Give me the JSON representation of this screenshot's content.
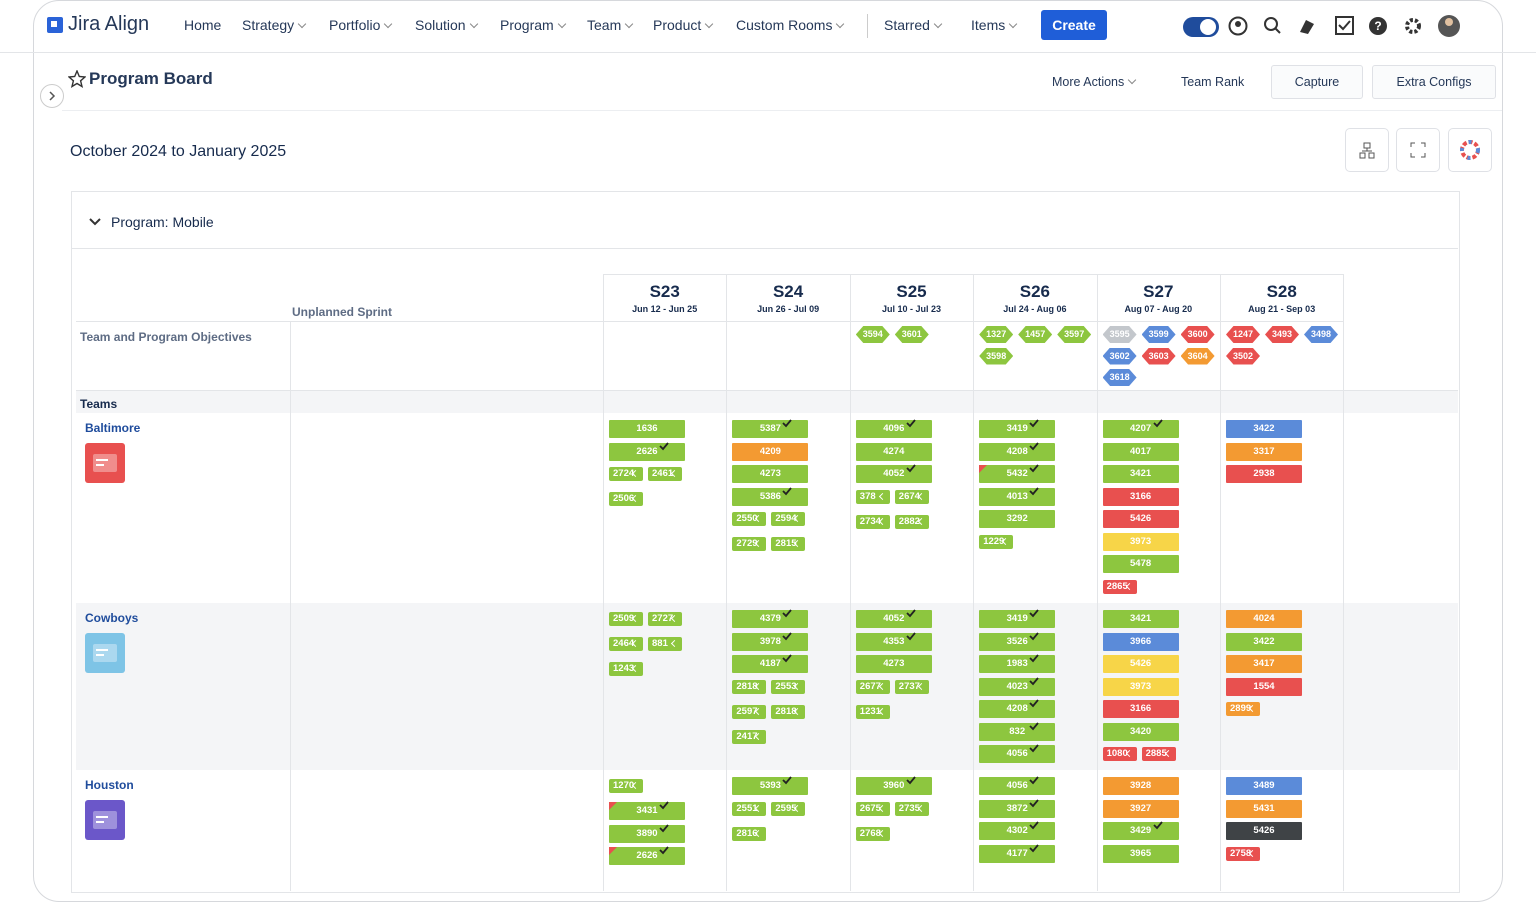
{
  "nav": {
    "logo": "Jira Align",
    "items": [
      "Home",
      "Strategy",
      "Portfolio",
      "Solution",
      "Program",
      "Team",
      "Product",
      "Custom Rooms"
    ],
    "right_items": [
      "Starred",
      "Items"
    ],
    "create": "Create"
  },
  "header": {
    "title": "Program Board",
    "actions": [
      "More Actions",
      "Team Rank",
      "Capture",
      "Extra Configs"
    ]
  },
  "range": "October 2024 to January 2025",
  "program": "Program: Mobile",
  "palette": {
    "g": "#8dc63f",
    "o": "#f39a32",
    "r": "#e8504f",
    "y": "#f7d548",
    "b": "#5b8bd9",
    "k": "#3f4346",
    "s": "#c3c7cc"
  },
  "board": {
    "unplanned": "Unplanned Sprint",
    "objectives_label": "Team and Program Objectives",
    "teams_label": "Teams",
    "sprints": [
      {
        "name": "S23",
        "dates": "Jun 12 - Jun 25"
      },
      {
        "name": "S24",
        "dates": "Jun 26 - Jul 09"
      },
      {
        "name": "S25",
        "dates": "Jul 10 - Jul 23"
      },
      {
        "name": "S26",
        "dates": "Jul 24 - Aug 06"
      },
      {
        "name": "S27",
        "dates": "Aug 07 - Aug 20"
      },
      {
        "name": "S28",
        "dates": "Aug 21 - Sep 03"
      }
    ],
    "objectives": [
      [],
      [],
      [
        {
          "id": "3594",
          "c": "g"
        },
        {
          "id": "3601",
          "c": "g"
        }
      ],
      [
        {
          "id": "1327",
          "c": "g"
        },
        {
          "id": "1457",
          "c": "g"
        },
        {
          "id": "3597",
          "c": "g"
        },
        {
          "id": "3598",
          "c": "g"
        }
      ],
      [
        {
          "id": "3595",
          "c": "s"
        },
        {
          "id": "3599",
          "c": "b"
        },
        {
          "id": "3600",
          "c": "r"
        },
        {
          "id": "3602",
          "c": "b"
        },
        {
          "id": "3603",
          "c": "r"
        },
        {
          "id": "3604",
          "c": "o"
        },
        {
          "id": "3618",
          "c": "b"
        }
      ],
      [
        {
          "id": "1247",
          "c": "r"
        },
        {
          "id": "3493",
          "c": "r"
        },
        {
          "id": "3498",
          "c": "b"
        },
        {
          "id": "3502",
          "c": "r"
        }
      ]
    ],
    "teams": [
      {
        "name": "Baltimore",
        "icon": "#e8504f",
        "cells": [
          [
            {
              "id": "1636",
              "c": "g",
              "bar": true
            },
            {
              "id": "2626",
              "c": "g",
              "bar": true,
              "check": true
            },
            {
              "id": "2724",
              "c": "g"
            },
            {
              "id": "2461",
              "c": "g"
            },
            {
              "id": "2506",
              "c": "g"
            }
          ],
          [
            {
              "id": "5387",
              "c": "g",
              "bar": true,
              "check": true
            },
            {
              "id": "4209",
              "c": "o",
              "bar": true
            },
            {
              "id": "4273",
              "c": "g",
              "bar": true
            },
            {
              "id": "5386",
              "c": "g",
              "bar": true,
              "check": true
            },
            {
              "id": "2550",
              "c": "g"
            },
            {
              "id": "2594",
              "c": "g"
            },
            {
              "id": "2729",
              "c": "g"
            },
            {
              "id": "2815",
              "c": "g"
            }
          ],
          [
            {
              "id": "4096",
              "c": "g",
              "bar": true,
              "check": true
            },
            {
              "id": "4274",
              "c": "g",
              "bar": true
            },
            {
              "id": "4052",
              "c": "g",
              "bar": true,
              "check": true
            },
            {
              "id": "378",
              "c": "g"
            },
            {
              "id": "2674",
              "c": "g"
            },
            {
              "id": "2734",
              "c": "g"
            },
            {
              "id": "2882",
              "c": "g"
            }
          ],
          [
            {
              "id": "3419",
              "c": "g",
              "bar": true,
              "check": true
            },
            {
              "id": "4208",
              "c": "g",
              "bar": true,
              "check": true
            },
            {
              "id": "5432",
              "c": "g",
              "bar": true,
              "check": true,
              "flag": true
            },
            {
              "id": "4013",
              "c": "g",
              "bar": true,
              "check": true
            },
            {
              "id": "3292",
              "c": "g",
              "bar": true
            },
            {
              "id": "1229",
              "c": "g"
            }
          ],
          [
            {
              "id": "4207",
              "c": "g",
              "bar": true,
              "check": true
            },
            {
              "id": "4017",
              "c": "g",
              "bar": true
            },
            {
              "id": "3421",
              "c": "g",
              "bar": true
            },
            {
              "id": "3166",
              "c": "r",
              "bar": true
            },
            {
              "id": "5426",
              "c": "r",
              "bar": true
            },
            {
              "id": "3973",
              "c": "y",
              "bar": true
            },
            {
              "id": "5478",
              "c": "g",
              "bar": true
            },
            {
              "id": "2865",
              "c": "r"
            }
          ],
          [
            {
              "id": "3422",
              "c": "b",
              "bar": true
            },
            {
              "id": "3317",
              "c": "o",
              "bar": true
            },
            {
              "id": "2938",
              "c": "r",
              "bar": true
            }
          ]
        ]
      },
      {
        "name": "Cowboys",
        "icon": "#7ec4e6",
        "cells": [
          [
            {
              "id": "2509",
              "c": "g"
            },
            {
              "id": "2727",
              "c": "g"
            },
            {
              "id": "2464",
              "c": "g"
            },
            {
              "id": "881",
              "c": "g"
            },
            {
              "id": "1243",
              "c": "g"
            }
          ],
          [
            {
              "id": "4379",
              "c": "g",
              "bar": true,
              "check": true
            },
            {
              "id": "3978",
              "c": "g",
              "bar": true,
              "check": true
            },
            {
              "id": "4187",
              "c": "g",
              "bar": true,
              "check": true
            },
            {
              "id": "2818",
              "c": "g"
            },
            {
              "id": "2553",
              "c": "g"
            },
            {
              "id": "2597",
              "c": "g"
            },
            {
              "id": "2818",
              "c": "g"
            },
            {
              "id": "2417",
              "c": "g"
            }
          ],
          [
            {
              "id": "4052",
              "c": "g",
              "bar": true,
              "check": true
            },
            {
              "id": "4353",
              "c": "g",
              "bar": true,
              "check": true
            },
            {
              "id": "4273",
              "c": "g",
              "bar": true
            },
            {
              "id": "2677",
              "c": "g"
            },
            {
              "id": "2737",
              "c": "g"
            },
            {
              "id": "1231",
              "c": "g"
            }
          ],
          [
            {
              "id": "3419",
              "c": "g",
              "bar": true,
              "check": true
            },
            {
              "id": "3526",
              "c": "g",
              "bar": true,
              "check": true
            },
            {
              "id": "1983",
              "c": "g",
              "bar": true,
              "check": true
            },
            {
              "id": "4023",
              "c": "g",
              "bar": true,
              "check": true
            },
            {
              "id": "4208",
              "c": "g",
              "bar": true,
              "check": true
            },
            {
              "id": "832",
              "c": "g",
              "bar": true,
              "check": true
            },
            {
              "id": "4056",
              "c": "g",
              "bar": true,
              "check": true
            }
          ],
          [
            {
              "id": "3421",
              "c": "g",
              "bar": true
            },
            {
              "id": "3966",
              "c": "b",
              "bar": true
            },
            {
              "id": "5426",
              "c": "y",
              "bar": true
            },
            {
              "id": "3973",
              "c": "y",
              "bar": true
            },
            {
              "id": "3166",
              "c": "r",
              "bar": true
            },
            {
              "id": "3420",
              "c": "g",
              "bar": true
            },
            {
              "id": "1080",
              "c": "r"
            },
            {
              "id": "2885",
              "c": "r"
            }
          ],
          [
            {
              "id": "4024",
              "c": "o",
              "bar": true
            },
            {
              "id": "3422",
              "c": "g",
              "bar": true
            },
            {
              "id": "3417",
              "c": "o",
              "bar": true
            },
            {
              "id": "1554",
              "c": "r",
              "bar": true
            },
            {
              "id": "2899",
              "c": "o"
            }
          ]
        ]
      },
      {
        "name": "Houston",
        "icon": "#6b57c9",
        "cells": [
          [
            {
              "id": "1270",
              "c": "g"
            },
            {
              "id": "3431",
              "c": "g",
              "bar": true,
              "check": true,
              "flag": true
            },
            {
              "id": "3890",
              "c": "g",
              "bar": true,
              "check": true
            },
            {
              "id": "2626",
              "c": "g",
              "bar": true,
              "check": true,
              "flag": true
            }
          ],
          [
            {
              "id": "5393",
              "c": "g",
              "bar": true,
              "check": true
            },
            {
              "id": "2551",
              "c": "g"
            },
            {
              "id": "2595",
              "c": "g"
            },
            {
              "id": "2816",
              "c": "g"
            }
          ],
          [
            {
              "id": "3960",
              "c": "g",
              "bar": true,
              "check": true
            },
            {
              "id": "2675",
              "c": "g"
            },
            {
              "id": "2735",
              "c": "g"
            },
            {
              "id": "2768",
              "c": "g"
            }
          ],
          [
            {
              "id": "4056",
              "c": "g",
              "bar": true,
              "check": true
            },
            {
              "id": "3872",
              "c": "g",
              "bar": true,
              "check": true
            },
            {
              "id": "4302",
              "c": "g",
              "bar": true,
              "check": true
            },
            {
              "id": "4177",
              "c": "g",
              "bar": true,
              "check": true
            }
          ],
          [
            {
              "id": "3928",
              "c": "o",
              "bar": true
            },
            {
              "id": "3927",
              "c": "o",
              "bar": true
            },
            {
              "id": "3429",
              "c": "g",
              "bar": true,
              "check": true
            },
            {
              "id": "3965",
              "c": "g",
              "bar": true
            }
          ],
          [
            {
              "id": "3489",
              "c": "b",
              "bar": true
            },
            {
              "id": "5431",
              "c": "o",
              "bar": true
            },
            {
              "id": "5426",
              "c": "k",
              "bar": true
            },
            {
              "id": "2758",
              "c": "r"
            }
          ]
        ]
      }
    ]
  }
}
